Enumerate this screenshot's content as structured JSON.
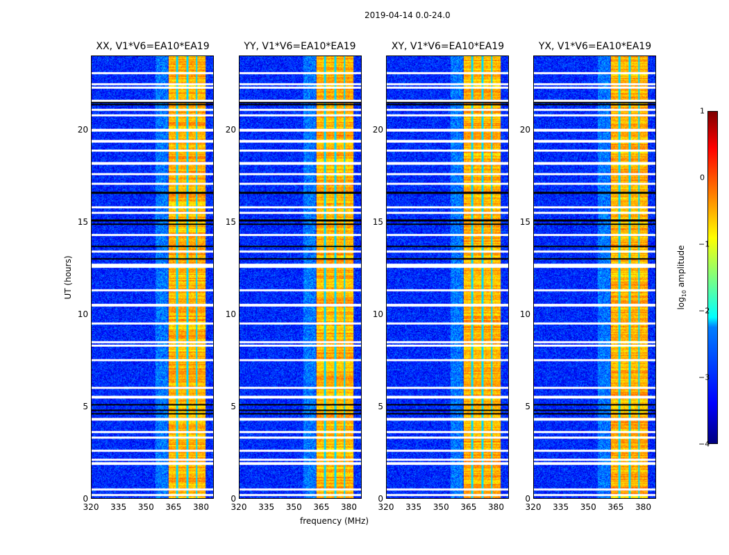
{
  "chart_data": {
    "type": "heatmap",
    "suptitle": "2019-04-14 0.0-24.0",
    "xlabel": "frequency (MHz)",
    "ylabel": "UT (hours)",
    "xlim": [
      320,
      387
    ],
    "ylim": [
      0,
      24
    ],
    "xticks": [
      "320",
      "335",
      "350",
      "365",
      "380"
    ],
    "yticks": [
      "0",
      "5",
      "10",
      "15",
      "20"
    ],
    "panels": [
      {
        "title": "XX, V1*V6=EA10*EA19"
      },
      {
        "title": "YY, V1*V6=EA10*EA19"
      },
      {
        "title": "XY, V1*V6=EA10*EA19"
      },
      {
        "title": "YX, V1*V6=EA10*EA19"
      }
    ],
    "colorbar": {
      "label": "log10 amplitude",
      "label_main": "log",
      "label_sub": "10",
      "label_rest": " amplitude",
      "range": [
        -4,
        1
      ],
      "ticks": [
        "1",
        "0",
        "−1",
        "−2",
        "−3",
        "−4"
      ],
      "colormap": "jet"
    },
    "background_level": -3.2,
    "bright_band_mhz": [
      362.3,
      382.6
    ],
    "bright_band_level": -0.5,
    "band_gaps_mhz": [
      367,
      372.5,
      377.7
    ],
    "flagged_white_hours": [
      0.2,
      0.5,
      1.9,
      2.1,
      2.6,
      3.3,
      3.6,
      4.3,
      5.5,
      6.0,
      7.5,
      8.3,
      8.5,
      9.5,
      10.5,
      11.3,
      12.6,
      12.7,
      13.4,
      14.3,
      15.5,
      15.8,
      17.1,
      17.6,
      18.2,
      18.9,
      19.4,
      20.0,
      20.8,
      21.1,
      21.6,
      22.3,
      22.5,
      23.1
    ],
    "flagged_black_hours": [
      4.6,
      4.8,
      5.1,
      13.0,
      13.7,
      14.9,
      15.1,
      16.6,
      21.4,
      21.5
    ]
  }
}
